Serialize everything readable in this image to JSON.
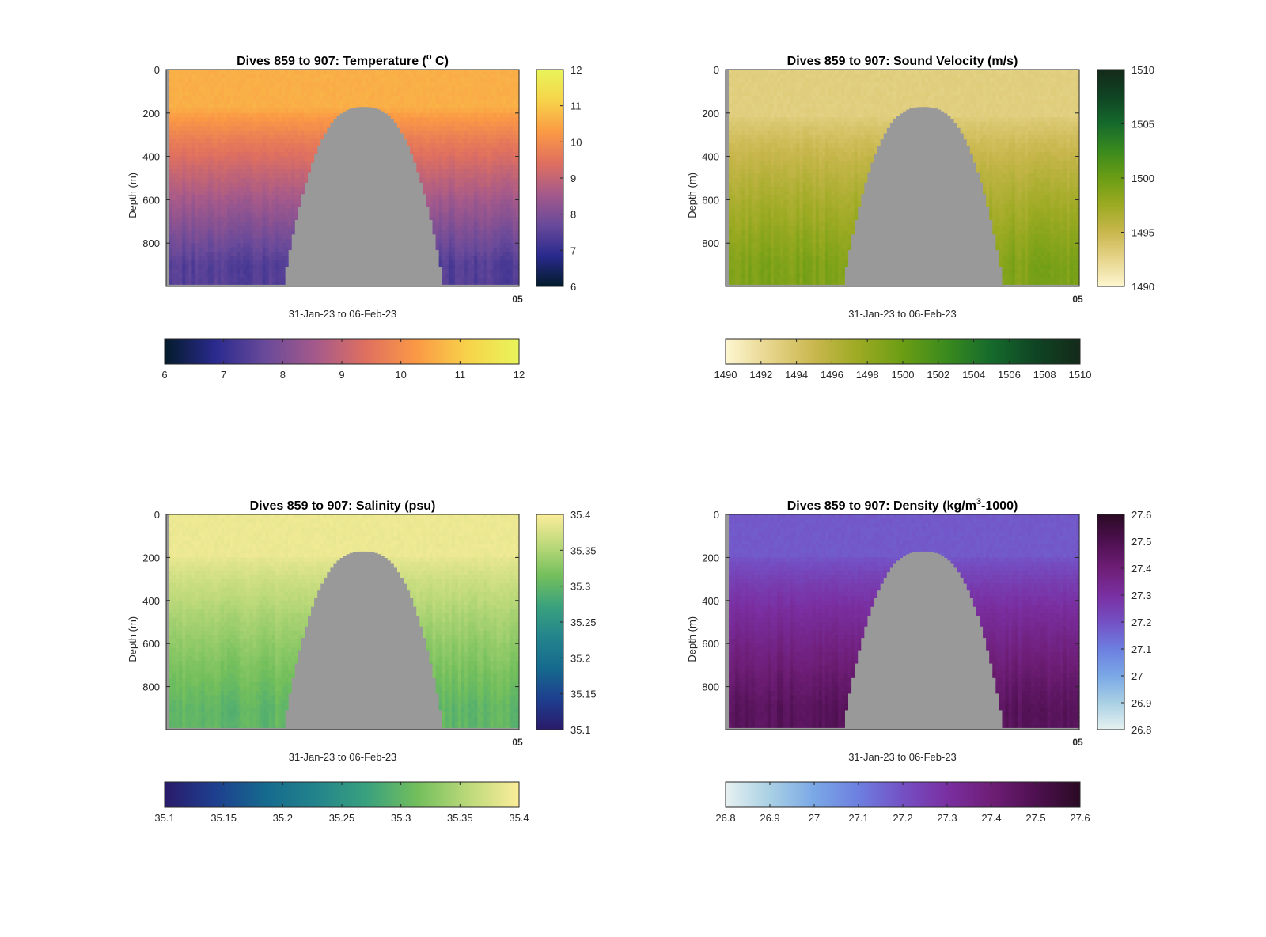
{
  "figure": {
    "background": "#ffffff",
    "land_color": "#999999"
  },
  "chart_data": [
    {
      "type": "heatmap",
      "title": "Dives 859 to 907: Temperature (° C)",
      "title_parts": [
        "Dives 859 to 907: Temperature (",
        "o",
        " C)"
      ],
      "ylabel": "Depth (m)",
      "xlabel": "31-Jan-23 to 06-Feb-23",
      "x_tick_overlap": "05",
      "ylim": [
        0,
        1000
      ],
      "y_reversed": true,
      "y_ticks": [
        0,
        200,
        400,
        600,
        800
      ],
      "colormap": "thermal",
      "colormap_stops": [
        "#031b2a",
        "#2a2a8e",
        "#6a4a9a",
        "#a65a8a",
        "#e0705f",
        "#fb9a45",
        "#f7d34a",
        "#e8f55a"
      ],
      "clim": [
        6,
        12
      ],
      "colorbar_ticks": [
        "6",
        "7",
        "8",
        "9",
        "10",
        "11",
        "12"
      ],
      "surface_value": 10.6,
      "deep_value": 7.4,
      "mixed_depth": 360,
      "profile_columns": 110,
      "gap_columns": [
        36,
        86
      ],
      "seabed_depth_min": 170,
      "seabed_depth_max": 990
    },
    {
      "type": "heatmap",
      "title": "Dives 859 to 907: Sound Velocity (m/s)",
      "title_parts": [
        "Dives 859 to 907: Sound Velocity (m/s)",
        "",
        ""
      ],
      "ylabel": "Depth (m)",
      "xlabel": "31-Jan-23 to 06-Feb-23",
      "x_tick_overlap": "05",
      "ylim": [
        0,
        1000
      ],
      "y_reversed": true,
      "y_ticks": [
        0,
        200,
        400,
        600,
        800
      ],
      "colormap": "speed",
      "colormap_stops": [
        "#fdf6d0",
        "#e7d58c",
        "#c9b74e",
        "#9caa22",
        "#6b9d14",
        "#3a8a1e",
        "#156a2c",
        "#0f4423",
        "#142a1a"
      ],
      "clim": [
        1490,
        1510
      ],
      "colorbar_ticks": [
        "1490",
        "1492",
        "1494",
        "1496",
        "1498",
        "1500",
        "1502",
        "1504",
        "1506",
        "1508",
        "1510"
      ],
      "side_colorbar_ticks": [
        "1490",
        "1495",
        "1500",
        "1505",
        "1510"
      ],
      "surface_value": 1493.0,
      "deep_value": 1499.0,
      "mixed_depth": 420,
      "profile_columns": 110,
      "gap_columns": [
        36,
        86
      ],
      "seabed_depth_min": 170,
      "seabed_depth_max": 990
    },
    {
      "type": "heatmap",
      "title": "Dives 859 to 907: Salinity (psu)",
      "title_parts": [
        "Dives 859 to 907: Salinity (psu)",
        "",
        ""
      ],
      "ylabel": "Depth (m)",
      "xlabel": "31-Jan-23 to 06-Feb-23",
      "x_tick_overlap": "05",
      "ylim": [
        0,
        1000
      ],
      "y_reversed": true,
      "y_ticks": [
        0,
        200,
        400,
        600,
        800
      ],
      "colormap": "haline",
      "colormap_stops": [
        "#2a1a6a",
        "#1e3f8f",
        "#156a8e",
        "#23848c",
        "#3aa17e",
        "#73bf5c",
        "#bcd97a",
        "#fbed9a"
      ],
      "clim": [
        35.1,
        35.4
      ],
      "colorbar_ticks": [
        "35.1",
        "35.15",
        "35.2",
        "35.25",
        "35.3",
        "35.35",
        "35.4"
      ],
      "surface_value": 35.39,
      "deep_value": 35.3,
      "mixed_depth": 380,
      "profile_columns": 110,
      "gap_columns": [
        36,
        86
      ],
      "seabed_depth_min": 170,
      "seabed_depth_max": 990
    },
    {
      "type": "heatmap",
      "title": "Dives 859 to 907: Density (kg/m³-1000)",
      "title_parts": [
        "Dives 859 to 907: Density (kg/m",
        "3",
        "-1000)"
      ],
      "ylabel": "Depth (m)",
      "xlabel": "31-Jan-23 to 06-Feb-23",
      "x_tick_overlap": "05",
      "ylim": [
        0,
        1000
      ],
      "y_reversed": true,
      "y_ticks": [
        0,
        200,
        400,
        600,
        800
      ],
      "colormap": "dense",
      "colormap_stops": [
        "#e6f1f1",
        "#a9d0e4",
        "#7aa8e6",
        "#6d7fe0",
        "#7450c4",
        "#7a2fa1",
        "#6e1e76",
        "#4e1050",
        "#2a0a24"
      ],
      "clim": [
        26.8,
        27.6
      ],
      "colorbar_ticks": [
        "26.8",
        "26.9",
        "27",
        "27.1",
        "27.2",
        "27.3",
        "27.4",
        "27.5",
        "27.6"
      ],
      "surface_value": 27.18,
      "deep_value": 27.47,
      "mixed_depth": 380,
      "profile_columns": 110,
      "gap_columns": [
        36,
        86
      ],
      "seabed_depth_min": 170,
      "seabed_depth_max": 990
    }
  ]
}
